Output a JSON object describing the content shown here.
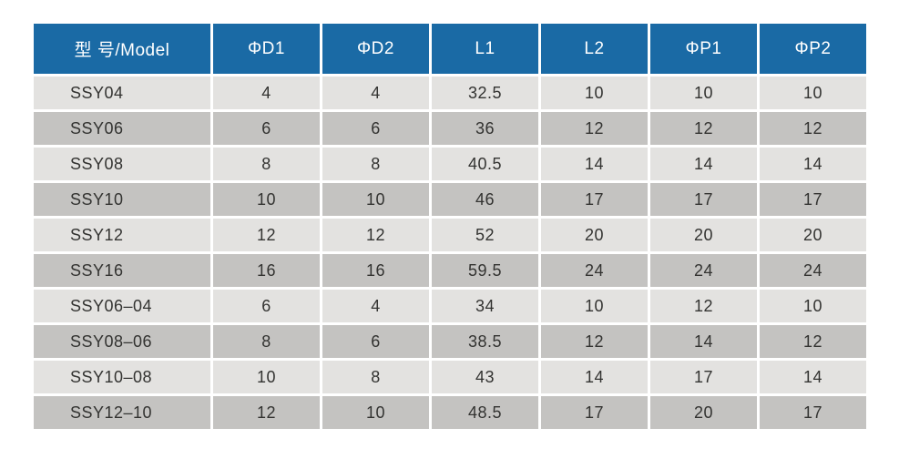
{
  "table": {
    "columns": [
      "型 号/Model",
      "ΦD1",
      "ΦD2",
      "L1",
      "L2",
      "ΦP1",
      "ΦP2"
    ],
    "rows": [
      [
        "SSY04",
        "4",
        "4",
        "32.5",
        "10",
        "10",
        "10"
      ],
      [
        "SSY06",
        "6",
        "6",
        "36",
        "12",
        "12",
        "12"
      ],
      [
        "SSY08",
        "8",
        "8",
        "40.5",
        "14",
        "14",
        "14"
      ],
      [
        "SSY10",
        "10",
        "10",
        "46",
        "17",
        "17",
        "17"
      ],
      [
        "SSY12",
        "12",
        "12",
        "52",
        "20",
        "20",
        "20"
      ],
      [
        "SSY16",
        "16",
        "16",
        "59.5",
        "24",
        "24",
        "24"
      ],
      [
        "SSY06–04",
        "6",
        "4",
        "34",
        "10",
        "12",
        "10"
      ],
      [
        "SSY08–06",
        "8",
        "6",
        "38.5",
        "12",
        "14",
        "12"
      ],
      [
        "SSY10–08",
        "10",
        "8",
        "43",
        "14",
        "17",
        "14"
      ],
      [
        "SSY12–10",
        "12",
        "10",
        "48.5",
        "17",
        "20",
        "17"
      ]
    ]
  },
  "colors": {
    "header_bg": "#1a6aa5",
    "header_text": "#ffffff",
    "row_light": "#e3e2e0",
    "row_dark": "#c4c3c1",
    "cell_text": "#333331",
    "page_bg": "#ffffff"
  },
  "chart_data": {
    "type": "table",
    "title": "",
    "columns": [
      "型 号/Model",
      "ΦD1",
      "ΦD2",
      "L1",
      "L2",
      "ΦP1",
      "ΦP2"
    ],
    "rows": [
      [
        "SSY04",
        4,
        4,
        32.5,
        10,
        10,
        10
      ],
      [
        "SSY06",
        6,
        6,
        36,
        12,
        12,
        12
      ],
      [
        "SSY08",
        8,
        8,
        40.5,
        14,
        14,
        14
      ],
      [
        "SSY10",
        10,
        10,
        46,
        17,
        17,
        17
      ],
      [
        "SSY12",
        12,
        12,
        52,
        20,
        20,
        20
      ],
      [
        "SSY16",
        16,
        16,
        59.5,
        24,
        24,
        24
      ],
      [
        "SSY06–04",
        6,
        4,
        34,
        10,
        12,
        10
      ],
      [
        "SSY08–06",
        8,
        6,
        38.5,
        12,
        14,
        12
      ],
      [
        "SSY10–08",
        10,
        8,
        43,
        14,
        17,
        14
      ],
      [
        "SSY12–10",
        12,
        10,
        48.5,
        17,
        20,
        17
      ]
    ]
  }
}
